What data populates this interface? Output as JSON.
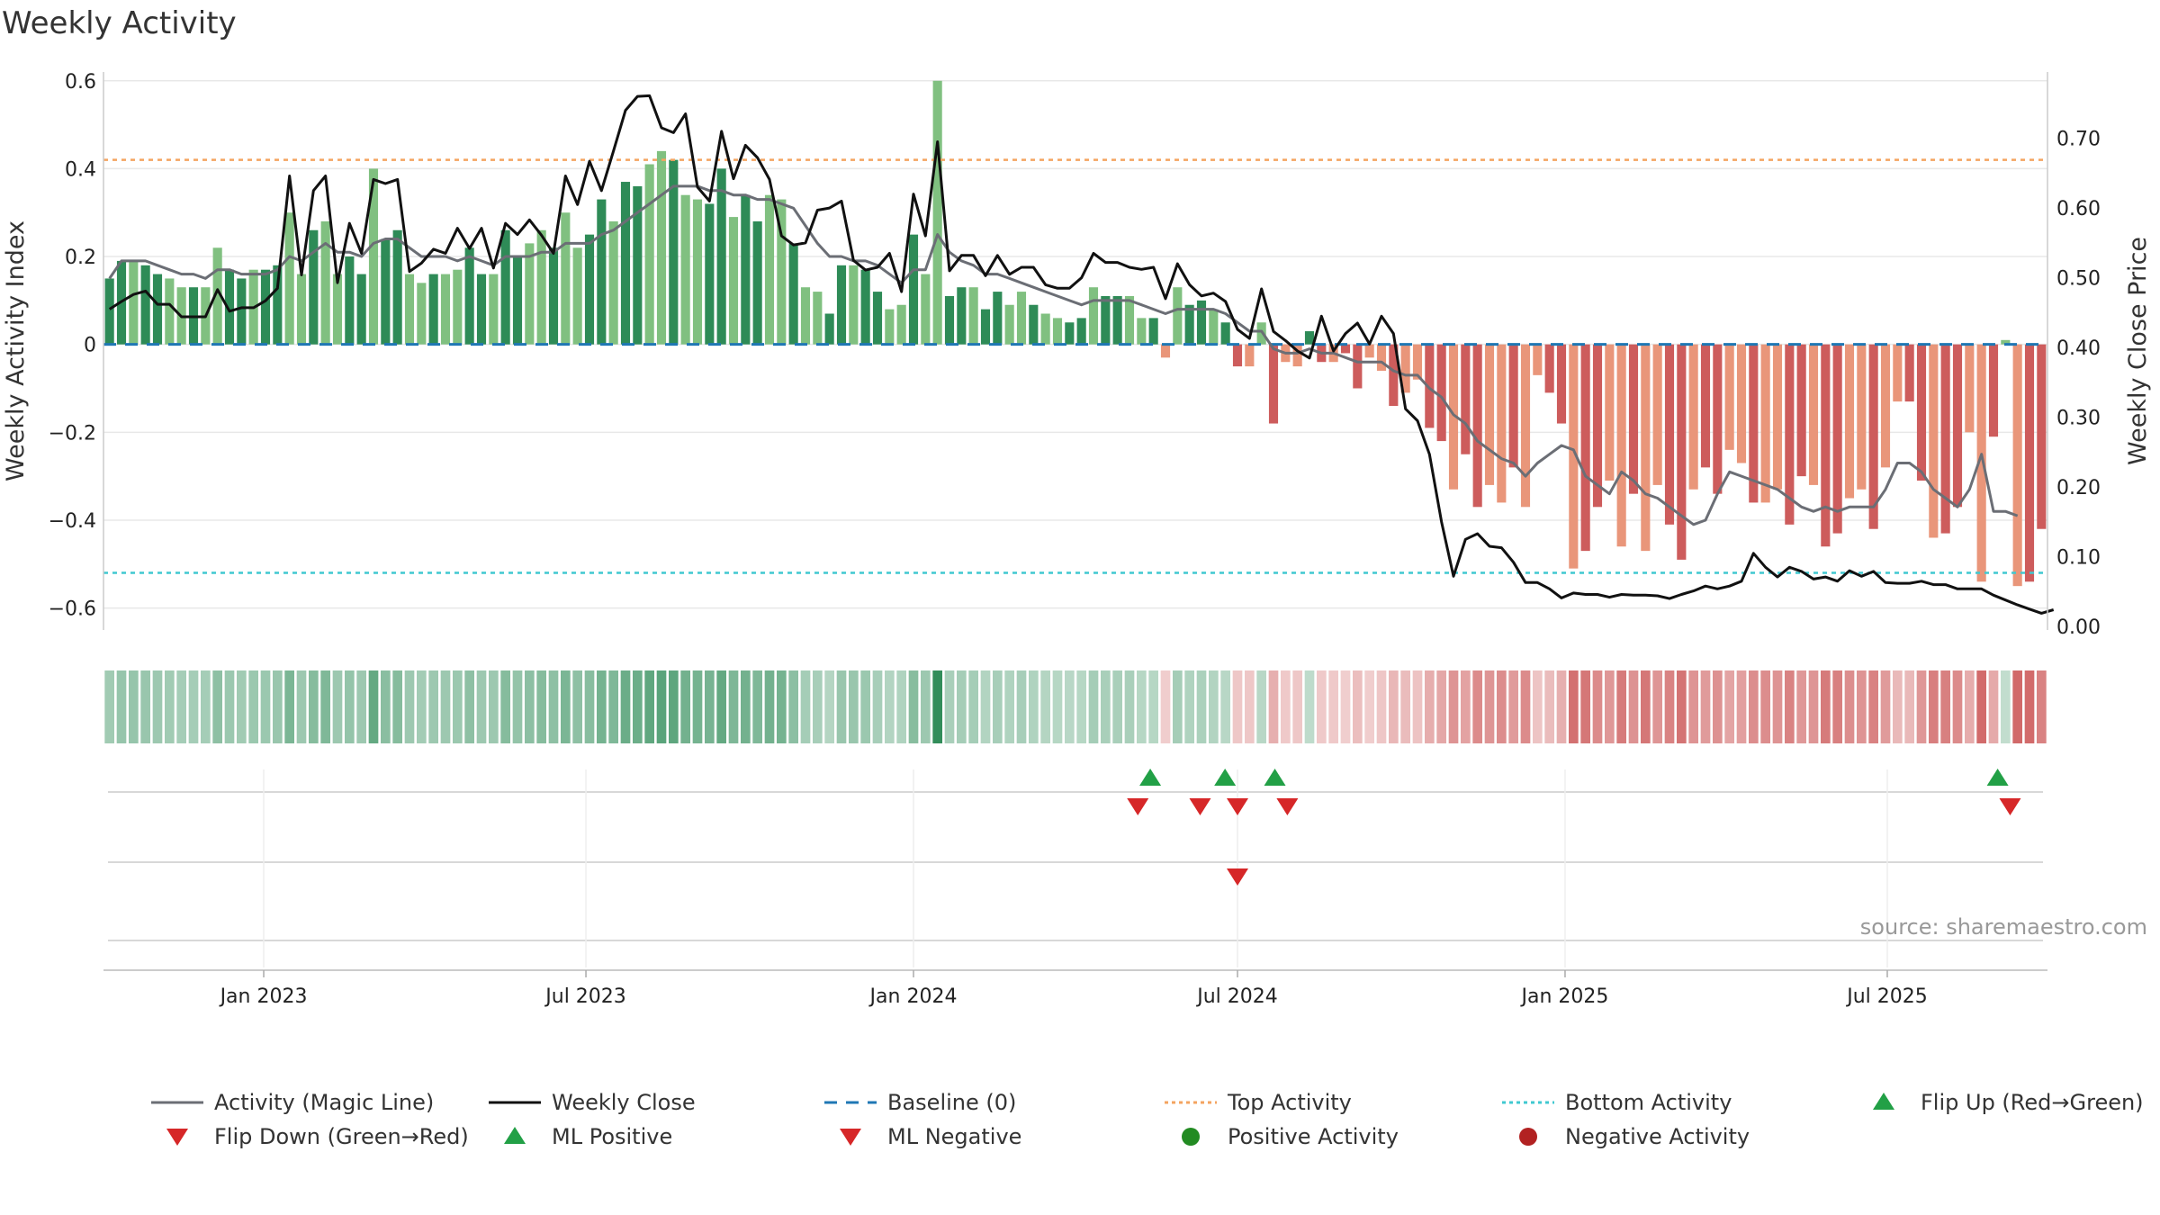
{
  "page": {
    "title": "Weekly Activity",
    "source": "source: sharemaestro.com"
  },
  "chart_data": {
    "type": "bar",
    "title": "Weekly Activity",
    "ylabel": "Weekly Activity Index",
    "y2label": "Weekly Close Price",
    "ylim": [
      -0.65,
      0.62
    ],
    "y2lim": [
      -0.005,
      0.795
    ],
    "yticks": [
      -0.6,
      -0.4,
      -0.2,
      0,
      0.2,
      0.4,
      0.6
    ],
    "ytick_labels": [
      "−0.6",
      "−0.4",
      "−0.2",
      "0",
      "0.2",
      "0.4",
      "0.6"
    ],
    "y2ticks": [
      0.0,
      0.1,
      0.2,
      0.3,
      0.4,
      0.5,
      0.6,
      0.7
    ],
    "y2tick_labels": [
      "0.00",
      "0.10",
      "0.20",
      "0.30",
      "0.40",
      "0.50",
      "0.60",
      "0.70"
    ],
    "x_start": "2022-10-03",
    "x_end": "2025-09-29",
    "xticks": [
      "2023-01-01",
      "2023-07-01",
      "2024-01-01",
      "2024-07-01",
      "2025-01-01",
      "2025-07-01"
    ],
    "xtick_labels": [
      "Jan 2023",
      "Jul 2023",
      "Jan 2024",
      "Jul 2024",
      "Jan 2025",
      "Jul 2025"
    ],
    "top_activity": 0.42,
    "bottom_activity": -0.52,
    "baseline": 0,
    "colors": {
      "pos_strong": "#2e8b57",
      "pos_light": "#80c080",
      "neg_strong": "#cd5c5c",
      "neg_light": "#e9967a",
      "close": "#111111",
      "magic": "#6b6e75",
      "baseline": "#1f77b4",
      "top": "#f4a460",
      "bottom": "#40c8d0",
      "flip_up": "#22a046",
      "flip_down": "#d62728",
      "ml_pos": "#22a046",
      "ml_neg": "#d62728",
      "pos_dot": "#228b22",
      "neg_dot": "#b22222"
    },
    "activity": [
      0.15,
      0.19,
      0.19,
      0.18,
      0.16,
      0.15,
      0.13,
      0.13,
      0.13,
      0.22,
      0.17,
      0.15,
      0.17,
      0.17,
      0.18,
      0.3,
      0.16,
      0.26,
      0.28,
      0.16,
      0.2,
      0.16,
      0.4,
      0.24,
      0.26,
      0.16,
      0.14,
      0.16,
      0.16,
      0.17,
      0.22,
      0.16,
      0.16,
      0.26,
      0.2,
      0.23,
      0.26,
      0.22,
      0.3,
      0.22,
      0.25,
      0.33,
      0.28,
      0.37,
      0.36,
      0.41,
      0.44,
      0.42,
      0.34,
      0.33,
      0.32,
      0.4,
      0.29,
      0.34,
      0.28,
      0.34,
      0.33,
      0.23,
      0.13,
      0.12,
      0.07,
      0.18,
      0.18,
      0.17,
      0.12,
      0.08,
      0.09,
      0.25,
      0.16,
      0.6,
      0.11,
      0.13,
      0.13,
      0.08,
      0.12,
      0.09,
      0.12,
      0.09,
      0.07,
      0.06,
      0.05,
      0.06,
      0.13,
      0.11,
      0.11,
      0.11,
      0.06,
      0.06,
      -0.03,
      0.13,
      0.09,
      0.1,
      0.08,
      0.05,
      -0.05,
      -0.05,
      0.05,
      -0.18,
      -0.04,
      -0.05,
      0.03,
      -0.04,
      -0.04,
      -0.02,
      -0.1,
      -0.03,
      -0.06,
      -0.14,
      -0.11,
      -0.08,
      -0.19,
      -0.22,
      -0.33,
      -0.25,
      -0.37,
      -0.32,
      -0.36,
      -0.28,
      -0.37,
      -0.07,
      -0.11,
      -0.18,
      -0.51,
      -0.47,
      -0.37,
      -0.31,
      -0.46,
      -0.34,
      -0.47,
      -0.32,
      -0.41,
      -0.49,
      -0.33,
      -0.28,
      -0.34,
      -0.24,
      -0.27,
      -0.36,
      -0.36,
      -0.33,
      -0.41,
      -0.3,
      -0.32,
      -0.46,
      -0.43,
      -0.35,
      -0.33,
      -0.42,
      -0.28,
      -0.13,
      -0.13,
      -0.31,
      -0.44,
      -0.43,
      -0.37,
      -0.2,
      -0.54,
      -0.21,
      0.01,
      -0.55,
      -0.54,
      -0.42
    ],
    "magic_line": [
      0.15,
      0.19,
      0.19,
      0.19,
      0.18,
      0.17,
      0.16,
      0.16,
      0.15,
      0.17,
      0.17,
      0.16,
      0.16,
      0.16,
      0.17,
      0.2,
      0.19,
      0.21,
      0.23,
      0.21,
      0.21,
      0.2,
      0.23,
      0.24,
      0.24,
      0.22,
      0.2,
      0.2,
      0.2,
      0.19,
      0.2,
      0.19,
      0.18,
      0.2,
      0.2,
      0.2,
      0.21,
      0.21,
      0.23,
      0.23,
      0.23,
      0.25,
      0.26,
      0.28,
      0.3,
      0.32,
      0.34,
      0.36,
      0.36,
      0.36,
      0.35,
      0.35,
      0.34,
      0.34,
      0.33,
      0.33,
      0.32,
      0.31,
      0.27,
      0.23,
      0.2,
      0.2,
      0.19,
      0.19,
      0.18,
      0.16,
      0.14,
      0.17,
      0.17,
      0.25,
      0.21,
      0.19,
      0.18,
      0.16,
      0.16,
      0.15,
      0.14,
      0.13,
      0.12,
      0.11,
      0.1,
      0.09,
      0.1,
      0.1,
      0.1,
      0.1,
      0.09,
      0.08,
      0.07,
      0.08,
      0.08,
      0.08,
      0.08,
      0.07,
      0.05,
      0.03,
      0.03,
      -0.01,
      -0.02,
      -0.02,
      -0.01,
      -0.02,
      -0.02,
      -0.03,
      -0.04,
      -0.04,
      -0.04,
      -0.06,
      -0.07,
      -0.07,
      -0.1,
      -0.12,
      -0.16,
      -0.18,
      -0.22,
      -0.24,
      -0.26,
      -0.27,
      -0.3,
      -0.27,
      -0.25,
      -0.23,
      -0.24,
      -0.3,
      -0.32,
      -0.34,
      -0.29,
      -0.31,
      -0.34,
      -0.35,
      -0.37,
      -0.39,
      -0.41,
      -0.4,
      -0.34,
      -0.29,
      -0.3,
      -0.31,
      -0.32,
      -0.33,
      -0.35,
      -0.37,
      -0.38,
      -0.37,
      -0.38,
      -0.37,
      -0.37,
      -0.37,
      -0.33,
      -0.27,
      -0.27,
      -0.29,
      -0.33,
      -0.35,
      -0.37,
      -0.33,
      -0.25,
      -0.38,
      -0.38,
      -0.39
    ],
    "weekly_close": [
      0.455,
      0.466,
      0.476,
      0.481,
      0.462,
      0.462,
      0.444,
      0.444,
      0.444,
      0.483,
      0.452,
      0.457,
      0.457,
      0.467,
      0.485,
      0.646,
      0.504,
      0.625,
      0.646,
      0.493,
      0.578,
      0.535,
      0.641,
      0.635,
      0.641,
      0.509,
      0.521,
      0.541,
      0.535,
      0.571,
      0.542,
      0.571,
      0.514,
      0.578,
      0.562,
      0.583,
      0.561,
      0.535,
      0.646,
      0.605,
      0.667,
      0.625,
      0.682,
      0.74,
      0.76,
      0.761,
      0.715,
      0.708,
      0.735,
      0.63,
      0.61,
      0.71,
      0.642,
      0.69,
      0.672,
      0.641,
      0.56,
      0.547,
      0.55,
      0.597,
      0.6,
      0.61,
      0.525,
      0.511,
      0.515,
      0.535,
      0.48,
      0.62,
      0.56,
      0.695,
      0.51,
      0.532,
      0.532,
      0.503,
      0.532,
      0.505,
      0.515,
      0.515,
      0.49,
      0.485,
      0.485,
      0.5,
      0.535,
      0.522,
      0.522,
      0.515,
      0.512,
      0.515,
      0.47,
      0.52,
      0.49,
      0.474,
      0.478,
      0.466,
      0.426,
      0.413,
      0.484,
      0.423,
      0.41,
      0.395,
      0.385,
      0.445,
      0.395,
      0.42,
      0.435,
      0.405,
      0.445,
      0.42,
      0.312,
      0.295,
      0.247,
      0.15,
      0.072,
      0.125,
      0.133,
      0.115,
      0.113,
      0.092,
      0.063,
      0.063,
      0.054,
      0.041,
      0.048,
      0.046,
      0.046,
      0.042,
      0.046,
      0.045,
      0.045,
      0.044,
      0.04,
      0.046,
      0.051,
      0.058,
      0.054,
      0.058,
      0.065,
      0.105,
      0.085,
      0.071,
      0.085,
      0.079,
      0.068,
      0.071,
      0.065,
      0.08,
      0.072,
      0.079,
      0.063,
      0.062,
      0.062,
      0.065,
      0.06,
      0.06,
      0.054,
      0.054,
      0.054,
      0.045,
      0.038,
      0.031,
      0.025,
      0.019,
      0.024
    ],
    "flip_up": [
      "2024-05-13",
      "2024-06-24",
      "2024-07-22",
      "2025-09-01"
    ],
    "flip_down": [
      "2024-05-06",
      "2024-06-10",
      "2024-07-01",
      "2024-07-29",
      "2025-09-08"
    ],
    "ml_positive": [],
    "ml_negative": [
      "2024-07-01"
    ],
    "positive_activity": [],
    "negative_activity": [],
    "legend": [
      {
        "label": "Activity (Magic Line)",
        "symbol": "line-solid",
        "color": "#6b6e75"
      },
      {
        "label": "Weekly Close",
        "symbol": "line-solid",
        "color": "#111111"
      },
      {
        "label": "Baseline (0)",
        "symbol": "line-dashed",
        "color": "#1f77b4"
      },
      {
        "label": "Top Activity",
        "symbol": "line-dotted",
        "color": "#f4a460"
      },
      {
        "label": "Bottom Activity",
        "symbol": "line-dotted",
        "color": "#40c8d0"
      },
      {
        "label": "Flip Up (Red→Green)",
        "symbol": "triangle-up",
        "color": "#22a046"
      },
      {
        "label": "Flip Down (Green→Red)",
        "symbol": "triangle-down",
        "color": "#d62728"
      },
      {
        "label": "ML Positive",
        "symbol": "triangle-up",
        "color": "#22a046"
      },
      {
        "label": "ML Negative",
        "symbol": "triangle-down",
        "color": "#d62728"
      },
      {
        "label": "Positive Activity",
        "symbol": "circle",
        "color": "#228b22"
      },
      {
        "label": "Negative Activity",
        "symbol": "circle",
        "color": "#b22222"
      }
    ]
  }
}
